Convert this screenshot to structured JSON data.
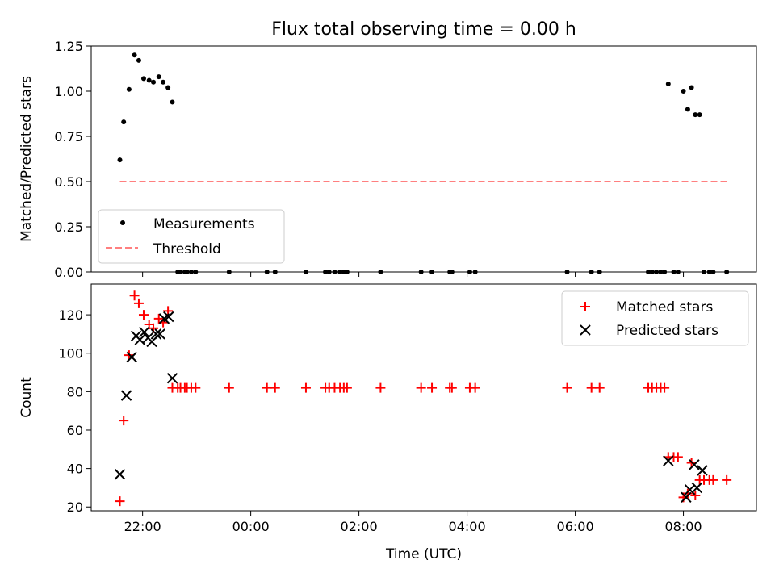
{
  "chart_data": [
    {
      "type": "scatter",
      "title": "Flux total observing time = 0.00 h",
      "xlabel": "",
      "ylabel": "Matched/Predicted stars",
      "xlim": [
        -2.95,
        9.35
      ],
      "ylim": [
        0.0,
        1.25
      ],
      "x_tick_values": [
        -2,
        0,
        2,
        4,
        6,
        8
      ],
      "y_tick_values": [
        0.0,
        0.25,
        0.5,
        0.75,
        1.0,
        1.25
      ],
      "y_tick_labels": [
        "0.00",
        "0.25",
        "0.50",
        "0.75",
        "1.00",
        "1.25"
      ],
      "legend": {
        "placement": "lower-left",
        "entries": [
          "Measurements",
          "Threshold"
        ]
      },
      "colors": {
        "measurements": "#000000",
        "threshold": "#ff7f7f"
      },
      "series": [
        {
          "name": "Measurements",
          "kind": "points",
          "x": [
            -2.42,
            -2.35,
            -2.25,
            -2.15,
            -2.07,
            -1.98,
            -1.88,
            -1.8,
            -1.7,
            -1.62,
            -1.53,
            -1.45,
            -1.35,
            -1.3,
            -1.22,
            -1.18,
            -1.1,
            -1.02,
            -0.4,
            0.3,
            0.45,
            1.02,
            1.38,
            1.45,
            1.55,
            1.65,
            1.72,
            1.78,
            2.4,
            3.15,
            3.35,
            3.68,
            3.72,
            4.05,
            4.15,
            5.85,
            6.3,
            6.45,
            7.35,
            7.42,
            7.5,
            7.58,
            7.65,
            7.72,
            7.82,
            7.9,
            8.0,
            8.08,
            8.15,
            8.22,
            8.3,
            8.38,
            8.48,
            8.55,
            8.8
          ],
          "y": [
            0.62,
            0.83,
            1.01,
            1.2,
            1.17,
            1.07,
            1.06,
            1.05,
            1.08,
            1.05,
            1.02,
            0.94,
            0.0,
            0.0,
            0.0,
            0.0,
            0.0,
            0.0,
            0.0,
            0.0,
            0.0,
            0.0,
            0.0,
            0.0,
            0.0,
            0.0,
            0.0,
            0.0,
            0.0,
            0.0,
            0.0,
            0.0,
            0.0,
            0.0,
            0.0,
            0.0,
            0.0,
            0.0,
            0.0,
            0.0,
            0.0,
            0.0,
            0.0,
            1.04,
            0.0,
            0.0,
            1.0,
            0.9,
            1.02,
            0.87,
            0.87,
            0.0,
            0.0,
            0.0,
            0.0
          ]
        },
        {
          "name": "Threshold",
          "kind": "dashed-line",
          "x": [
            -2.42,
            8.8
          ],
          "y": [
            0.5,
            0.5
          ]
        }
      ]
    },
    {
      "type": "scatter",
      "title": "",
      "xlabel": "Time (UTC)",
      "ylabel": "Count",
      "xlim": [
        -2.95,
        9.35
      ],
      "ylim": [
        18,
        136
      ],
      "x_tick_values": [
        -2,
        0,
        2,
        4,
        6,
        8
      ],
      "x_tick_labels": [
        "22:00",
        "00:00",
        "02:00",
        "04:00",
        "06:00",
        "08:00"
      ],
      "y_tick_values": [
        20,
        40,
        60,
        80,
        100,
        120
      ],
      "y_tick_labels": [
        "20",
        "40",
        "60",
        "80",
        "100",
        "120"
      ],
      "legend": {
        "placement": "top-right",
        "entries": [
          "Matched stars",
          "Predicted stars"
        ]
      },
      "colors": {
        "matched": "#ff0000",
        "predicted": "#000000"
      },
      "series": [
        {
          "name": "Matched stars",
          "kind": "plus",
          "x": [
            -2.42,
            -2.35,
            -2.25,
            -2.15,
            -2.07,
            -1.98,
            -1.88,
            -1.8,
            -1.7,
            -1.62,
            -1.53,
            -1.45,
            -1.35,
            -1.3,
            -1.22,
            -1.18,
            -1.1,
            -1.02,
            -0.4,
            0.3,
            0.45,
            1.02,
            1.38,
            1.45,
            1.55,
            1.65,
            1.72,
            1.78,
            2.4,
            3.15,
            3.35,
            3.68,
            3.72,
            4.05,
            4.15,
            5.85,
            6.3,
            6.45,
            7.35,
            7.42,
            7.5,
            7.58,
            7.65,
            7.72,
            7.82,
            7.9,
            8.0,
            8.08,
            8.15,
            8.22,
            8.3,
            8.38,
            8.48,
            8.55,
            8.8
          ],
          "y": [
            23,
            65,
            99,
            130,
            126,
            120,
            115,
            113,
            118,
            116,
            122,
            82,
            82,
            82,
            82,
            82,
            82,
            82,
            82,
            82,
            82,
            82,
            82,
            82,
            82,
            82,
            82,
            82,
            82,
            82,
            82,
            82,
            82,
            82,
            82,
            82,
            82,
            82,
            82,
            82,
            82,
            82,
            82,
            46,
            46,
            46,
            25,
            27,
            43,
            26,
            34,
            34,
            34,
            34,
            34
          ]
        },
        {
          "name": "Predicted stars",
          "kind": "cross",
          "x": [
            -2.42,
            -2.3,
            -2.2,
            -2.12,
            -2.05,
            -1.97,
            -1.9,
            -1.83,
            -1.75,
            -1.68,
            -1.6,
            -1.52,
            -1.45,
            7.72,
            8.05,
            8.12,
            8.2,
            8.25,
            8.35
          ],
          "y": [
            37,
            78,
            98,
            109,
            107,
            111,
            108,
            106,
            110,
            110,
            118,
            119,
            87,
            44,
            25,
            29,
            42,
            30,
            39
          ]
        }
      ]
    }
  ]
}
